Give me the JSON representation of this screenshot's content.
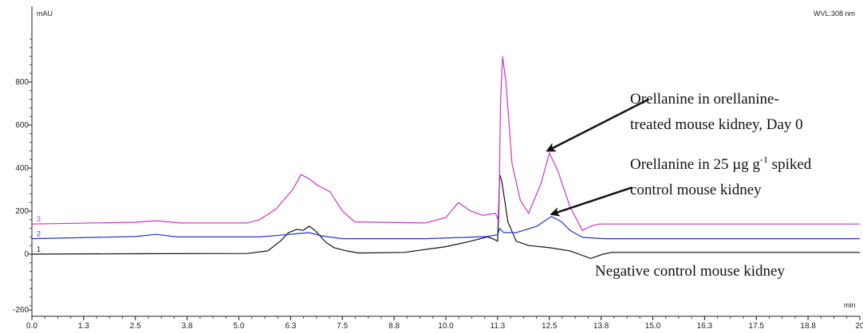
{
  "chart_data": {
    "type": "line",
    "y_unit": "mAU",
    "x_unit": "min",
    "wavelength": "WVL:308 nm",
    "xlim": [
      0,
      20
    ],
    "ylim": [
      -260,
      1000
    ],
    "x_tick_labels": [
      "0.0",
      "1.3",
      "2.5",
      "3.8",
      "5.0",
      "6.3",
      "7.5",
      "8.8",
      "10.0",
      "11.3",
      "12.5",
      "13.8",
      "15.0",
      "16.3",
      "17.5",
      "18.8",
      "20"
    ],
    "y_ticks": [
      -260,
      0,
      200,
      400,
      600,
      800
    ],
    "y_tick_labels": [
      "-260",
      "0",
      "200",
      "400",
      "600",
      "800"
    ],
    "series": [
      {
        "id": "1",
        "color": "#111111",
        "points": [
          [
            0,
            0
          ],
          [
            2.5,
            2
          ],
          [
            5.2,
            3
          ],
          [
            5.7,
            15
          ],
          [
            6.0,
            60
          ],
          [
            6.2,
            100
          ],
          [
            6.4,
            115
          ],
          [
            6.55,
            110
          ],
          [
            6.7,
            130
          ],
          [
            6.85,
            108
          ],
          [
            7.1,
            55
          ],
          [
            7.3,
            30
          ],
          [
            7.6,
            15
          ],
          [
            7.9,
            5
          ],
          [
            9.0,
            8
          ],
          [
            10.0,
            35
          ],
          [
            10.6,
            60
          ],
          [
            11.0,
            80
          ],
          [
            11.15,
            70
          ],
          [
            11.25,
            60
          ],
          [
            11.3,
            370
          ],
          [
            11.35,
            340
          ],
          [
            11.5,
            150
          ],
          [
            11.7,
            60
          ],
          [
            12.0,
            40
          ],
          [
            12.5,
            30
          ],
          [
            13.0,
            15
          ],
          [
            13.5,
            -20
          ],
          [
            13.8,
            0
          ],
          [
            14.0,
            8
          ],
          [
            20,
            8
          ]
        ]
      },
      {
        "id": "2",
        "color": "#2233cc",
        "points": [
          [
            0,
            72
          ],
          [
            2.5,
            82
          ],
          [
            3.0,
            92
          ],
          [
            3.5,
            80
          ],
          [
            5.5,
            80
          ],
          [
            6.0,
            88
          ],
          [
            6.4,
            95
          ],
          [
            6.7,
            100
          ],
          [
            7.0,
            85
          ],
          [
            7.5,
            72
          ],
          [
            9.5,
            72
          ],
          [
            10.5,
            78
          ],
          [
            11.0,
            82
          ],
          [
            11.25,
            90
          ],
          [
            11.3,
            120
          ],
          [
            11.4,
            100
          ],
          [
            11.7,
            100
          ],
          [
            12.2,
            130
          ],
          [
            12.55,
            175
          ],
          [
            12.8,
            150
          ],
          [
            13.0,
            110
          ],
          [
            13.3,
            78
          ],
          [
            13.8,
            72
          ],
          [
            20,
            72
          ]
        ]
      },
      {
        "id": "3",
        "color": "#cc33cc",
        "points": [
          [
            0,
            140
          ],
          [
            2.5,
            148
          ],
          [
            3.0,
            155
          ],
          [
            3.6,
            145
          ],
          [
            5.2,
            145
          ],
          [
            5.5,
            160
          ],
          [
            5.9,
            210
          ],
          [
            6.3,
            300
          ],
          [
            6.5,
            370
          ],
          [
            6.7,
            350
          ],
          [
            6.9,
            320
          ],
          [
            7.2,
            290
          ],
          [
            7.5,
            200
          ],
          [
            7.8,
            150
          ],
          [
            9.5,
            145
          ],
          [
            10.0,
            170
          ],
          [
            10.3,
            240
          ],
          [
            10.6,
            200
          ],
          [
            10.9,
            180
          ],
          [
            11.2,
            190
          ],
          [
            11.28,
            150
          ],
          [
            11.32,
            700
          ],
          [
            11.37,
            920
          ],
          [
            11.45,
            800
          ],
          [
            11.6,
            420
          ],
          [
            11.8,
            250
          ],
          [
            12.0,
            190
          ],
          [
            12.3,
            330
          ],
          [
            12.5,
            470
          ],
          [
            12.7,
            390
          ],
          [
            13.0,
            220
          ],
          [
            13.3,
            110
          ],
          [
            13.5,
            130
          ],
          [
            13.7,
            140
          ],
          [
            20,
            140
          ]
        ]
      }
    ],
    "annotations": [
      {
        "line1": "Orellanine in orellanine-",
        "line2": "treated mouse kidney, Day 0"
      },
      {
        "line1_pre": "Orellanine in 25 µg g",
        "line1_sup": "-1",
        "line1_post": " spiked",
        "line2": "control mouse kidney"
      },
      {
        "line1": "Negative  control mouse kidney"
      }
    ],
    "arrows": [
      {
        "from_point": [
          14.9,
          720
        ],
        "to_point": [
          12.45,
          480
        ]
      },
      {
        "from_point": [
          14.5,
          310
        ],
        "to_point": [
          12.55,
          185
        ]
      }
    ]
  }
}
